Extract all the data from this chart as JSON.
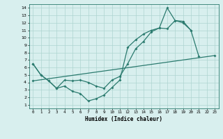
{
  "line1_x": [
    0,
    1,
    2,
    3,
    4,
    5,
    6,
    7,
    8,
    9,
    10,
    11,
    12,
    13,
    14,
    15,
    16,
    17,
    18,
    19,
    20,
    21
  ],
  "line1_y": [
    6.5,
    5.0,
    4.2,
    3.2,
    3.5,
    2.8,
    2.5,
    1.5,
    1.8,
    2.3,
    3.3,
    4.3,
    8.7,
    9.7,
    10.5,
    11.0,
    11.3,
    14.0,
    12.3,
    12.2,
    11.0,
    7.5
  ],
  "line2_x": [
    0,
    1,
    2,
    3,
    4,
    5,
    6,
    7,
    8,
    9,
    10,
    11,
    12,
    13,
    14,
    15,
    16,
    17,
    18,
    19,
    20
  ],
  "line2_y": [
    6.5,
    5.0,
    4.2,
    3.2,
    4.3,
    4.2,
    4.3,
    4.0,
    3.5,
    3.2,
    4.3,
    4.8,
    6.5,
    8.5,
    9.5,
    10.8,
    11.3,
    11.2,
    12.3,
    12.0,
    11.0
  ],
  "line3_x": [
    0,
    23
  ],
  "line3_y": [
    4.2,
    7.6
  ],
  "color": "#2a7a6e",
  "bg_color": "#d8efee",
  "grid_color": "#aed4d0",
  "xlabel": "Humidex (Indice chaleur)",
  "xlim": [
    -0.5,
    23.5
  ],
  "ylim": [
    0.5,
    14.5
  ],
  "yticks": [
    1,
    2,
    3,
    4,
    5,
    6,
    7,
    8,
    9,
    10,
    11,
    12,
    13,
    14
  ],
  "xticks": [
    0,
    1,
    2,
    3,
    4,
    5,
    6,
    7,
    8,
    9,
    10,
    11,
    12,
    13,
    14,
    15,
    16,
    17,
    18,
    19,
    20,
    21,
    22,
    23
  ],
  "marker": "D",
  "marker_size": 2.0,
  "line_width": 0.9
}
